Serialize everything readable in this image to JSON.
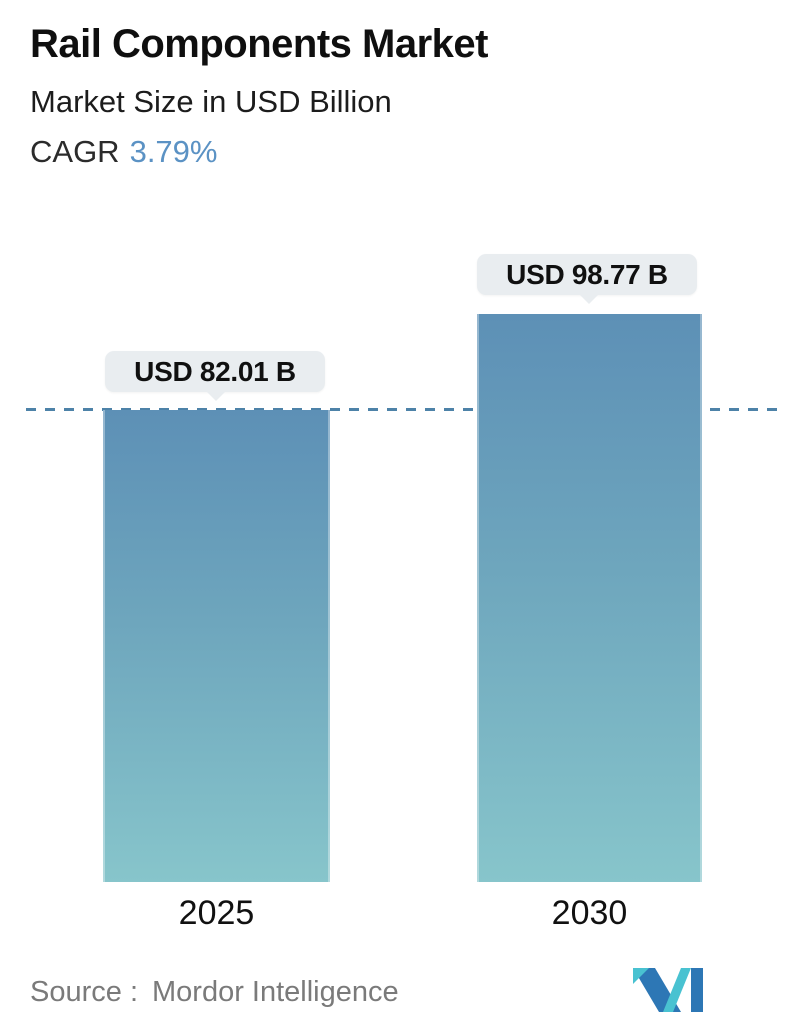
{
  "header": {
    "title": "Rail Components Market",
    "subtitle": "Market Size in USD Billion",
    "cagr_label": "CAGR",
    "cagr_value": "3.79%"
  },
  "chart_data": {
    "type": "bar",
    "categories": [
      "2025",
      "2030"
    ],
    "values": [
      82.01,
      98.77
    ],
    "value_labels": [
      "USD 82.01 B",
      "USD 98.77 B"
    ],
    "unit": "USD Billion",
    "title": "Rail Components Market",
    "xlabel": "",
    "ylabel": "Market Size in USD Billion",
    "ylim": [
      0,
      105
    ],
    "grid": false,
    "annotations": {
      "dashed_reference_line_value": 82.01,
      "cagr_percent": 3.79
    },
    "bar_colors": {
      "gradient_top": "#5d90b6",
      "gradient_bottom": "#87c5cb"
    }
  },
  "footer": {
    "source_label": "Source :",
    "source_name": "Mordor Intelligence",
    "logo_name": "mordor-intelligence-logo"
  },
  "colors": {
    "accent_blue": "#5b92c4",
    "dashed_line": "#4d82a8",
    "tooltip_bg": "#e9edf0",
    "source_text": "#7a7a7a",
    "logo_blue": "#2d77b5",
    "logo_teal": "#49c2d1"
  }
}
